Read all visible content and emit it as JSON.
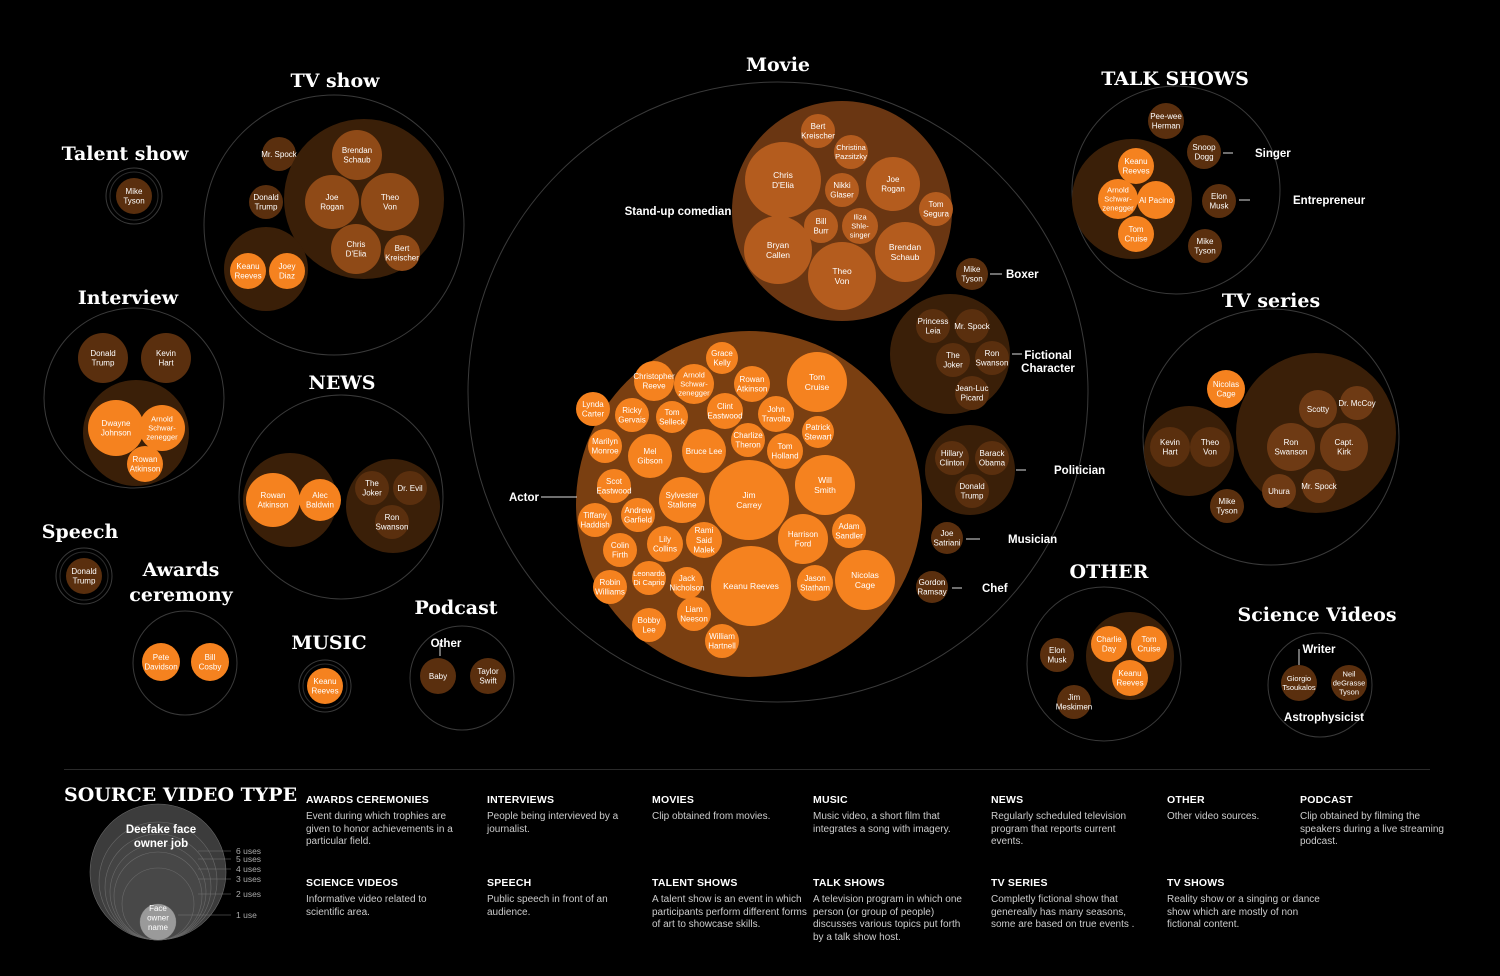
{
  "colors": {
    "background": "#000000",
    "dark_bubble": "#5a2f0e",
    "bright_bubble": "#f5821f",
    "mid_group": "#8a4a18",
    "ring": "#4a4a4a"
  },
  "groups": [
    {
      "id": "talent_show",
      "title": "Talent show",
      "subgroups": [
        {
          "name": "",
          "people": [
            {
              "name": "Mike Tyson",
              "uses": 1
            }
          ]
        }
      ]
    },
    {
      "id": "tv_show",
      "title": "TV show",
      "subgroups": [
        {
          "name": "",
          "people": [
            {
              "name": "Mr. Spock",
              "uses": 1
            },
            {
              "name": "Donald Trump",
              "uses": 1
            }
          ]
        },
        {
          "name": "",
          "people": [
            {
              "name": "Brendan Schaub",
              "uses": 2
            },
            {
              "name": "Joe Rogan",
              "uses": 2
            },
            {
              "name": "Theo Von",
              "uses": 3
            },
            {
              "name": "Chris D'Elia",
              "uses": 2
            },
            {
              "name": "Bert Kreischer",
              "uses": 1
            }
          ]
        },
        {
          "name": "",
          "people": [
            {
              "name": "Keanu Reeves",
              "uses": 1
            },
            {
              "name": "Joey Diaz",
              "uses": 1
            }
          ]
        }
      ]
    },
    {
      "id": "interview",
      "title": "Interview",
      "subgroups": [
        {
          "name": "",
          "people": [
            {
              "name": "Donald Trump",
              "uses": 2
            },
            {
              "name": "Kevin Hart",
              "uses": 2
            }
          ]
        },
        {
          "name": "",
          "people": [
            {
              "name": "Dwayne Johnson",
              "uses": 3
            },
            {
              "name": "Arnold Schwarzenegger",
              "uses": 2
            },
            {
              "name": "Rowan Atkinson",
              "uses": 2
            }
          ]
        }
      ]
    },
    {
      "id": "news",
      "title": "NEWS",
      "subgroups": [
        {
          "name": "",
          "people": [
            {
              "name": "Rowan Atkinson",
              "uses": 3
            },
            {
              "name": "Alec Baldwin",
              "uses": 2
            }
          ]
        },
        {
          "name": "",
          "people": [
            {
              "name": "The Joker",
              "uses": 1
            },
            {
              "name": "Dr. Evil",
              "uses": 1
            },
            {
              "name": "Ron Swanson",
              "uses": 1
            }
          ]
        }
      ]
    },
    {
      "id": "speech",
      "title": "Speech",
      "subgroups": [
        {
          "name": "",
          "people": [
            {
              "name": "Donald Trump",
              "uses": 1
            }
          ]
        }
      ]
    },
    {
      "id": "awards",
      "title": "Awards ceremony",
      "subgroups": [
        {
          "name": "",
          "people": [
            {
              "name": "Pete Davidson",
              "uses": 1
            },
            {
              "name": "Bill Cosby",
              "uses": 1
            }
          ]
        }
      ]
    },
    {
      "id": "music",
      "title": "MUSIC",
      "subgroups": [
        {
          "name": "",
          "people": [
            {
              "name": "Keanu Reeves",
              "uses": 1
            }
          ]
        }
      ]
    },
    {
      "id": "podcast",
      "title": "Podcast",
      "subgroups": [
        {
          "name": "Other",
          "people": [
            {
              "name": "Baby",
              "uses": 1
            }
          ]
        },
        {
          "name": "",
          "people": [
            {
              "name": "Taylor Swift",
              "uses": 1
            }
          ]
        }
      ]
    },
    {
      "id": "movie",
      "title": "Movie",
      "subgroups": [
        {
          "name": "Stand-up comedian",
          "people": [
            {
              "name": "Bert Kreischer",
              "uses": 1
            },
            {
              "name": "Christina Pazsitzky",
              "uses": 1
            },
            {
              "name": "Chris D'Elia",
              "uses": 4
            },
            {
              "name": "Joe Rogan",
              "uses": 3
            },
            {
              "name": "Nikki Glaser",
              "uses": 1
            },
            {
              "name": "Tom Segura",
              "uses": 1
            },
            {
              "name": "Bill Burr",
              "uses": 1
            },
            {
              "name": "Iliza Shlesinger",
              "uses": 1
            },
            {
              "name": "Bryan Callen",
              "uses": 3
            },
            {
              "name": "Brendan Schaub",
              "uses": 3
            },
            {
              "name": "Theo Von",
              "uses": 3
            }
          ]
        },
        {
          "name": "Boxer",
          "people": [
            {
              "name": "Mike Tyson",
              "uses": 1
            }
          ]
        },
        {
          "name": "Fictional Character",
          "people": [
            {
              "name": "Princess Leia",
              "uses": 1
            },
            {
              "name": "Mr. Spock",
              "uses": 1
            },
            {
              "name": "The Joker",
              "uses": 1
            },
            {
              "name": "Ron Swanson",
              "uses": 1
            },
            {
              "name": "Jean-Luc Picard",
              "uses": 1
            }
          ]
        },
        {
          "name": "Politician",
          "people": [
            {
              "name": "Hillary Clinton",
              "uses": 1
            },
            {
              "name": "Barack Obama",
              "uses": 1
            },
            {
              "name": "Donald Trump",
              "uses": 1
            }
          ]
        },
        {
          "name": "Musician",
          "people": [
            {
              "name": "Joe Satriani",
              "uses": 1
            }
          ]
        },
        {
          "name": "Chef",
          "people": [
            {
              "name": "Gordon Ramsay",
              "uses": 1
            }
          ]
        },
        {
          "name": "Actor",
          "people": [
            {
              "name": "Grace Kelly",
              "uses": 1
            },
            {
              "name": "Christopher Reeve",
              "uses": 1
            },
            {
              "name": "Arnold Schwarzenegger",
              "uses": 1
            },
            {
              "name": "Rowan Atkinson",
              "uses": 1
            },
            {
              "name": "Tom Cruise",
              "uses": 3
            },
            {
              "name": "Lynda Carter",
              "uses": 1
            },
            {
              "name": "Ricky Gervais",
              "uses": 1
            },
            {
              "name": "Tom Selleck",
              "uses": 1
            },
            {
              "name": "Clint Eastwood",
              "uses": 1
            },
            {
              "name": "John Travolta",
              "uses": 1
            },
            {
              "name": "Marilyn Monroe",
              "uses": 1
            },
            {
              "name": "Mel Gibson",
              "uses": 2
            },
            {
              "name": "Bruce Lee",
              "uses": 2
            },
            {
              "name": "Charlize Theron",
              "uses": 1
            },
            {
              "name": "Patrick Stewart",
              "uses": 1
            },
            {
              "name": "Tom Holland",
              "uses": 1
            },
            {
              "name": "Scot Eastwood",
              "uses": 1
            },
            {
              "name": "Sylvester Stallone",
              "uses": 2
            },
            {
              "name": "Jim Carrey",
              "uses": 5
            },
            {
              "name": "Will Smith",
              "uses": 3
            },
            {
              "name": "Tiffany Haddish",
              "uses": 1
            },
            {
              "name": "Andrew Garfield",
              "uses": 1
            },
            {
              "name": "Rami Said Malek",
              "uses": 1
            },
            {
              "name": "Harrison Ford",
              "uses": 2
            },
            {
              "name": "Adam Sandler",
              "uses": 1
            },
            {
              "name": "Colin Firth",
              "uses": 1
            },
            {
              "name": "Lily Collins",
              "uses": 1
            },
            {
              "name": "Leonardo Di Caprio",
              "uses": 1
            },
            {
              "name": "Jack Nicholson",
              "uses": 1
            },
            {
              "name": "Keanu Reeves",
              "uses": 6
            },
            {
              "name": "Jason Statham",
              "uses": 1
            },
            {
              "name": "Nicolas Cage",
              "uses": 3
            },
            {
              "name": "Robin Williams",
              "uses": 1
            },
            {
              "name": "Bobby Lee",
              "uses": 1
            },
            {
              "name": "Liam Neeson",
              "uses": 1
            },
            {
              "name": "William Hartnell",
              "uses": 1
            }
          ]
        }
      ]
    },
    {
      "id": "talk_shows",
      "title": "TALK SHOWS",
      "subgroups": [
        {
          "name": "",
          "people": [
            {
              "name": "Pee-wee Herman",
              "uses": 1
            }
          ]
        },
        {
          "name": "",
          "people": [
            {
              "name": "Keanu Reeves",
              "uses": 1
            },
            {
              "name": "Arnold Schwarzenegger",
              "uses": 1
            },
            {
              "name": "Al Pacino",
              "uses": 1
            },
            {
              "name": "Tom Cruise",
              "uses": 1
            }
          ]
        },
        {
          "name": "Singer",
          "people": [
            {
              "name": "Snoop Dogg",
              "uses": 1
            }
          ]
        },
        {
          "name": "Entrepreneur",
          "people": [
            {
              "name": "Elon Musk",
              "uses": 1
            }
          ]
        },
        {
          "name": "",
          "people": [
            {
              "name": "Mike Tyson",
              "uses": 1
            }
          ]
        }
      ]
    },
    {
      "id": "tv_series",
      "title": "TV series",
      "subgroups": [
        {
          "name": "",
          "people": [
            {
              "name": "Nicolas Cage",
              "uses": 1
            }
          ]
        },
        {
          "name": "",
          "people": [
            {
              "name": "Kevin Hart",
              "uses": 1
            },
            {
              "name": "Theo Von",
              "uses": 1
            }
          ]
        },
        {
          "name": "",
          "people": [
            {
              "name": "Scotty",
              "uses": 1
            },
            {
              "name": "Dr. McCoy",
              "uses": 1
            },
            {
              "name": "Ron Swanson",
              "uses": 2
            },
            {
              "name": "Capt. Kirk",
              "uses": 2
            },
            {
              "name": "Uhura",
              "uses": 1
            },
            {
              "name": "Mr. Spock",
              "uses": 1
            }
          ]
        },
        {
          "name": "",
          "people": [
            {
              "name": "Mike Tyson",
              "uses": 1
            }
          ]
        }
      ]
    },
    {
      "id": "other",
      "title": "OTHER",
      "subgroups": [
        {
          "name": "",
          "people": [
            {
              "name": "Elon Musk",
              "uses": 1
            },
            {
              "name": "Jim Meskimen",
              "uses": 1
            }
          ]
        },
        {
          "name": "",
          "people": [
            {
              "name": "Charlie Day",
              "uses": 1
            },
            {
              "name": "Tom Cruise",
              "uses": 1
            },
            {
              "name": "Keanu Reeves",
              "uses": 1
            }
          ]
        }
      ]
    },
    {
      "id": "science",
      "title": "Science Videos",
      "subgroups": [
        {
          "name": "Writer",
          "people": [
            {
              "name": "Giorgio Tsoukalos",
              "uses": 1
            }
          ]
        },
        {
          "name": "Astrophysicist",
          "people": [
            {
              "name": "Neil deGrasse Tyson",
              "uses": 1
            }
          ]
        }
      ]
    }
  ],
  "legend": {
    "title": "SOURCE VIDEO TYPE",
    "bubble_caption": "Deefake face owner job",
    "center_caption": "Face owner name",
    "sizes": [
      "6 uses",
      "5 uses",
      "4 uses",
      "3 uses",
      "2 uses",
      "1 use"
    ],
    "definitions": [
      {
        "title": "AWARDS CEREMONIES",
        "text": "Event during which trophies are given to honor achievements in a particular field."
      },
      {
        "title": "INTERVIEWS",
        "text": "People being intervieved by a journalist."
      },
      {
        "title": "MOVIES",
        "text": "Clip obtained from movies."
      },
      {
        "title": "MUSIC",
        "text": "Music video, a short film that integrates a song with imagery."
      },
      {
        "title": "NEWS",
        "text": "Regularly scheduled television program that reports current events."
      },
      {
        "title": "OTHER",
        "text": "Other video sources."
      },
      {
        "title": "PODCAST",
        "text": "Clip obtained by filming the speakers during a live streaming podcast."
      },
      {
        "title": "SCIENCE VIDEOS",
        "text": "Informative video related to scientific area."
      },
      {
        "title": "SPEECH",
        "text": "Public speech in front of an audience."
      },
      {
        "title": "TALENT SHOWS",
        "text": "A talent show is an event in which participants perform different forms of art to showcase skills."
      },
      {
        "title": "TALK SHOWS",
        "text": "A television program in which one person (or group of people) discusses various topics put forth by a talk show host."
      },
      {
        "title": "TV SERIES",
        "text": "Completly fictional show that genereally has many seasons, some are based on true events ."
      },
      {
        "title": "TV SHOWS",
        "text": "Reality show or a singing or dance show which are mostly of non fictional content."
      }
    ]
  }
}
